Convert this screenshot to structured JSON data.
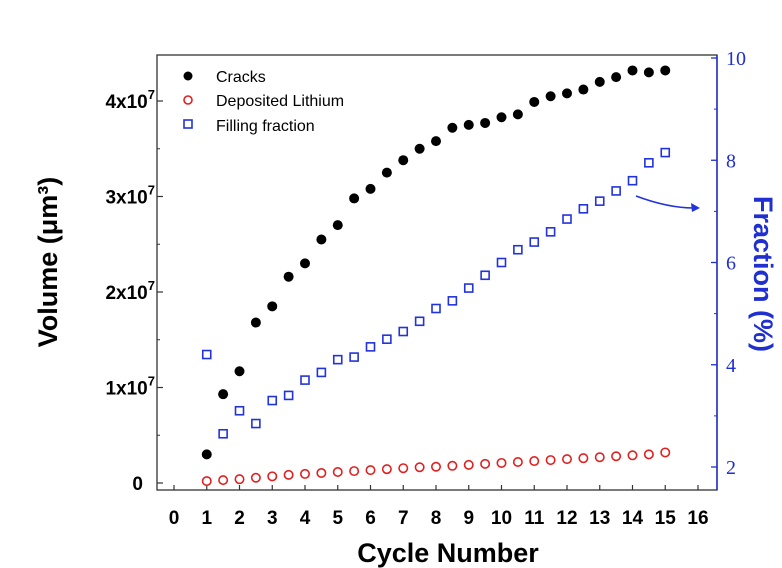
{
  "chart_data": {
    "type": "scatter",
    "xlabel": "Cycle Number",
    "ylabel_left": "Volume (μm³)",
    "ylabel_right": "Fraction (%)",
    "xlim": [
      0,
      16
    ],
    "x_ticks": [
      0,
      1,
      2,
      3,
      4,
      5,
      6,
      7,
      8,
      9,
      10,
      11,
      12,
      13,
      14,
      15,
      16
    ],
    "ylim_left": [
      0,
      43000000
    ],
    "y_ticks_left": [
      {
        "value": 0,
        "mantissa": "0",
        "exp": ""
      },
      {
        "value": 10000000,
        "mantissa": "1x10",
        "exp": "7"
      },
      {
        "value": 20000000,
        "mantissa": "2x10",
        "exp": "7"
      },
      {
        "value": 30000000,
        "mantissa": "3x10",
        "exp": "7"
      },
      {
        "value": 40000000,
        "mantissa": "4x10",
        "exp": "7"
      }
    ],
    "ylim_right": [
      1.7,
      10
    ],
    "y_ticks_right": [
      "2",
      "4",
      "6",
      "8",
      "10"
    ],
    "legend_position": "top-left",
    "colors": {
      "cracks": "#000000",
      "lithium": "#e02020",
      "fraction": "#2233dd"
    },
    "series": [
      {
        "name": "Cracks",
        "axis": "left",
        "marker": "filled-circle",
        "x": [
          1,
          1.5,
          2,
          2.5,
          3,
          3.5,
          4,
          4.5,
          5,
          5.5,
          6,
          6.5,
          7,
          7.5,
          8,
          8.5,
          9,
          9.5,
          10,
          10.5,
          11,
          11.5,
          12,
          12.5,
          13,
          13.5,
          14,
          14.5,
          15
        ],
        "values": [
          3000000,
          9300000,
          11700000,
          16800000,
          18500000,
          21600000,
          23000000,
          25500000,
          27000000,
          29800000,
          30800000,
          32500000,
          33800000,
          35000000,
          35800000,
          37200000,
          37500000,
          37700000,
          38300000,
          38600000,
          39900000,
          40500000,
          40800000,
          41200000,
          42000000,
          42500000,
          43200000,
          43000000,
          43200000
        ]
      },
      {
        "name": "Deposited Lithium",
        "axis": "left",
        "marker": "open-circle",
        "x": [
          1,
          1.5,
          2,
          2.5,
          3,
          3.5,
          4,
          4.5,
          5,
          5.5,
          6,
          6.5,
          7,
          7.5,
          8,
          8.5,
          9,
          9.5,
          10,
          10.5,
          11,
          11.5,
          12,
          12.5,
          13,
          13.5,
          14,
          14.5,
          15
        ],
        "values": [
          200000,
          300000,
          400000,
          550000,
          700000,
          850000,
          950000,
          1050000,
          1150000,
          1250000,
          1350000,
          1450000,
          1550000,
          1650000,
          1700000,
          1800000,
          1900000,
          2000000,
          2100000,
          2200000,
          2300000,
          2400000,
          2500000,
          2600000,
          2700000,
          2800000,
          2900000,
          3000000,
          3200000
        ]
      },
      {
        "name": "Filling fraction",
        "axis": "right",
        "marker": "open-square",
        "x": [
          1,
          1.5,
          2,
          2.5,
          3,
          3.5,
          4,
          4.5,
          5,
          5.5,
          6,
          6.5,
          7,
          7.5,
          8,
          8.5,
          9,
          9.5,
          10,
          10.5,
          11,
          11.5,
          12,
          12.5,
          13,
          13.5,
          14,
          14.5,
          15
        ],
        "values": [
          4.2,
          2.65,
          3.1,
          2.85,
          3.3,
          3.4,
          3.7,
          3.85,
          4.1,
          4.15,
          4.35,
          4.5,
          4.65,
          4.85,
          5.1,
          5.25,
          5.5,
          5.75,
          6.0,
          6.25,
          6.4,
          6.6,
          6.85,
          7.05,
          7.2,
          7.4,
          7.6,
          7.95,
          8.15
        ]
      }
    ]
  }
}
